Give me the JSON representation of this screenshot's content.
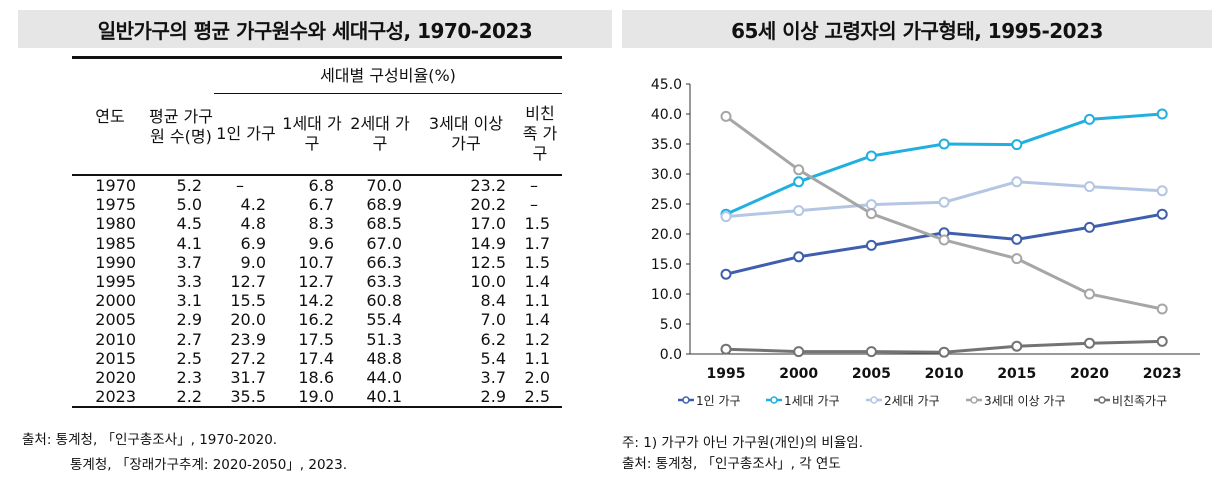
{
  "left": {
    "title": "일반가구의 평균 가구원수와 세대구성, 1970-2023",
    "headers": {
      "year": "연도",
      "avg": "평균 가구원 수(명)",
      "group": "세대별 구성비율(%)",
      "cols": [
        "1인 가구",
        "1세대 가구",
        "2세대 가구",
        "3세대 이상 가구",
        "비친족 가구"
      ]
    },
    "rows": [
      [
        "1970",
        "5.2",
        "–",
        "6.8",
        "70.0",
        "23.2",
        "–"
      ],
      [
        "1975",
        "5.0",
        "4.2",
        "6.7",
        "68.9",
        "20.2",
        "–"
      ],
      [
        "1980",
        "4.5",
        "4.8",
        "8.3",
        "68.5",
        "17.0",
        "1.5"
      ],
      [
        "1985",
        "4.1",
        "6.9",
        "9.6",
        "67.0",
        "14.9",
        "1.7"
      ],
      [
        "1990",
        "3.7",
        "9.0",
        "10.7",
        "66.3",
        "12.5",
        "1.5"
      ],
      [
        "1995",
        "3.3",
        "12.7",
        "12.7",
        "63.3",
        "10.0",
        "1.4"
      ],
      [
        "2000",
        "3.1",
        "15.5",
        "14.2",
        "60.8",
        "8.4",
        "1.1"
      ],
      [
        "2005",
        "2.9",
        "20.0",
        "16.2",
        "55.4",
        "7.0",
        "1.4"
      ],
      [
        "2010",
        "2.7",
        "23.9",
        "17.5",
        "51.3",
        "6.2",
        "1.2"
      ],
      [
        "2015",
        "2.5",
        "27.2",
        "17.4",
        "48.8",
        "5.4",
        "1.1"
      ],
      [
        "2020",
        "2.3",
        "31.7",
        "18.6",
        "44.0",
        "3.7",
        "2.0"
      ],
      [
        "2023",
        "2.2",
        "35.5",
        "19.0",
        "40.1",
        "2.9",
        "2.5"
      ]
    ],
    "source1": "출처: 통계청, 「인구총조사」, 1970-2020.",
    "source2": "통계청, 「장래가구추계: 2020-2050」, 2023."
  },
  "right": {
    "title": "65세 이상 고령자의 가구형태, 1995-2023",
    "note": "주: 1) 가구가 아닌 가구원(개인)의 비율임.",
    "source": "출처: 통계청, 「인구총조사」, 각 연도"
  },
  "chart_data": {
    "type": "line",
    "x": [
      "1995",
      "2000",
      "2005",
      "2010",
      "2015",
      "2020",
      "2023"
    ],
    "ylim": [
      0,
      45
    ],
    "yticks": [
      "0.0",
      "5.0",
      "10.0",
      "15.0",
      "20.0",
      "25.0",
      "30.0",
      "35.0",
      "40.0",
      "45.0"
    ],
    "grid": false,
    "legend": "bottom",
    "series": [
      {
        "name": "1인 가구",
        "color": "#3f5fae",
        "values": [
          13.3,
          16.2,
          18.1,
          20.2,
          19.1,
          21.1,
          23.3
        ]
      },
      {
        "name": "1세대 가구",
        "color": "#1fb0e0",
        "values": [
          23.3,
          28.7,
          33.0,
          35.0,
          34.9,
          39.1,
          40.0
        ]
      },
      {
        "name": "2세대 가구",
        "color": "#b4c6e4",
        "values": [
          22.9,
          23.9,
          24.9,
          25.3,
          28.7,
          27.9,
          27.2
        ]
      },
      {
        "name": "3세대 이상 가구",
        "color": "#a6a6a6",
        "values": [
          39.6,
          30.7,
          23.4,
          19.0,
          15.9,
          10.0,
          7.5
        ]
      },
      {
        "name": "비친족가구",
        "color": "#737373",
        "values": [
          0.8,
          0.4,
          0.4,
          0.3,
          1.3,
          1.8,
          2.1
        ]
      }
    ]
  }
}
